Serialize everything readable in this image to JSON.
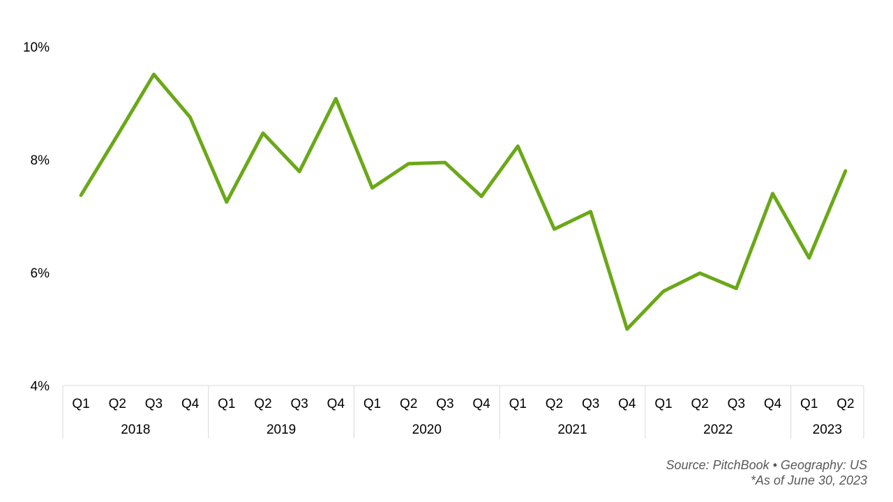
{
  "chart_data": {
    "type": "line",
    "title": "",
    "xlabel": "",
    "ylabel": "",
    "ylim": [
      4,
      10
    ],
    "yticks": [
      "10%",
      "8%",
      "6%",
      "4%"
    ],
    "ytick_values": [
      10,
      8,
      6,
      4
    ],
    "grid": false,
    "legend": "none",
    "categories": [
      "Q1",
      "Q2",
      "Q3",
      "Q4",
      "Q1",
      "Q2",
      "Q3",
      "Q4",
      "Q1",
      "Q2",
      "Q3",
      "Q4",
      "Q1",
      "Q2",
      "Q3",
      "Q4",
      "Q1",
      "Q2",
      "Q3",
      "Q4",
      "Q1",
      "Q2"
    ],
    "years": [
      {
        "label": "2018",
        "count": 4
      },
      {
        "label": "2019",
        "count": 4
      },
      {
        "label": "2020",
        "count": 4
      },
      {
        "label": "2021",
        "count": 4
      },
      {
        "label": "2022",
        "count": 4
      },
      {
        "label": "2023",
        "count": 2
      }
    ],
    "series": [
      {
        "color": "#6aa818",
        "values": [
          7.37,
          8.43,
          9.51,
          8.75,
          7.25,
          8.47,
          7.79,
          9.08,
          7.5,
          7.93,
          7.95,
          7.35,
          8.24,
          6.77,
          7.08,
          5.0,
          5.67,
          5.99,
          5.72,
          7.4,
          6.26,
          7.8
        ]
      }
    ]
  },
  "footer": {
    "source": "Source: PitchBook  •  Geography: US",
    "note": "*As of June 30, 2023"
  }
}
